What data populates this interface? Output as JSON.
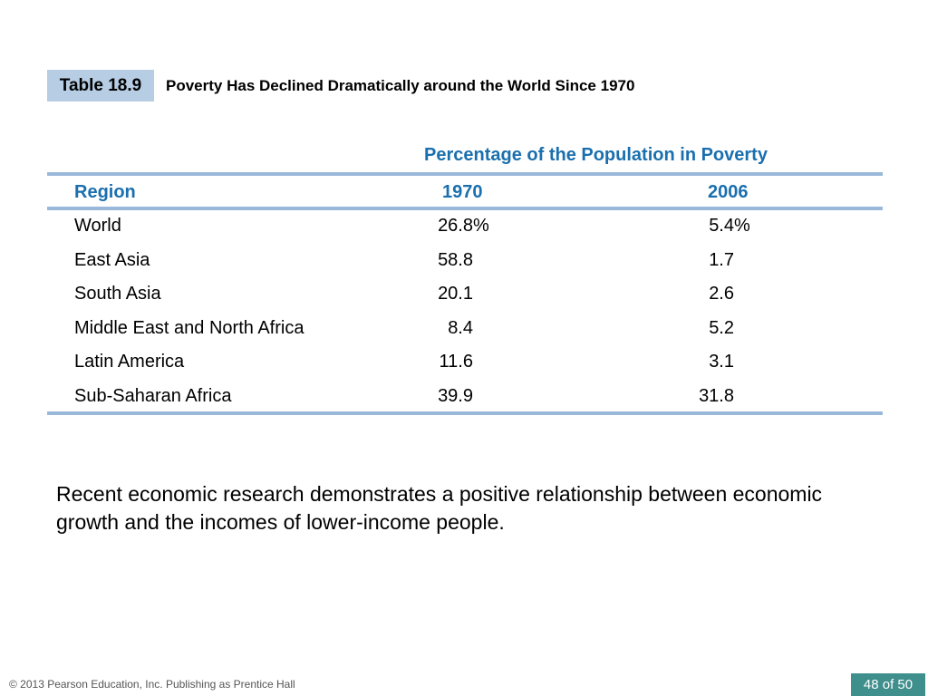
{
  "table": {
    "label": "Table 18.9",
    "title": "Poverty Has Declined Dramatically around the World Since 1970",
    "group_header": "Percentage of the Population in Poverty",
    "columns": [
      "Region",
      "1970",
      "2006"
    ],
    "rows": [
      {
        "region": "World",
        "v1970": "26.8",
        "v1970_suffix": "%",
        "v2006": "5.4",
        "v2006_suffix": "%"
      },
      {
        "region": "East Asia",
        "v1970": "58.8",
        "v1970_suffix": "",
        "v2006": "1.7",
        "v2006_suffix": ""
      },
      {
        "region": "South Asia",
        "v1970": "20.1",
        "v1970_suffix": "",
        "v2006": "2.6",
        "v2006_suffix": ""
      },
      {
        "region": "Middle East and North Africa",
        "v1970": "8.4",
        "v1970_suffix": "",
        "v2006": "5.2",
        "v2006_suffix": ""
      },
      {
        "region": "Latin America",
        "v1970": "11.6",
        "v1970_suffix": "",
        "v2006": "3.1",
        "v2006_suffix": ""
      },
      {
        "region": "Sub-Saharan Africa",
        "v1970": "39.9",
        "v1970_suffix": "",
        "v2006": "31.8",
        "v2006_suffix": ""
      }
    ]
  },
  "body_text": "Recent economic research demonstrates a positive relationship between economic growth and the incomes of lower-income people.",
  "footer": {
    "copyright": "© 2013 Pearson Education, Inc. Publishing as Prentice Hall",
    "page": "48 of 50"
  },
  "colors": {
    "accent": "#1a6fae",
    "label_bg": "#b7cde4",
    "rule": "#9ab9da",
    "page_badge": "#3f8f8d"
  }
}
